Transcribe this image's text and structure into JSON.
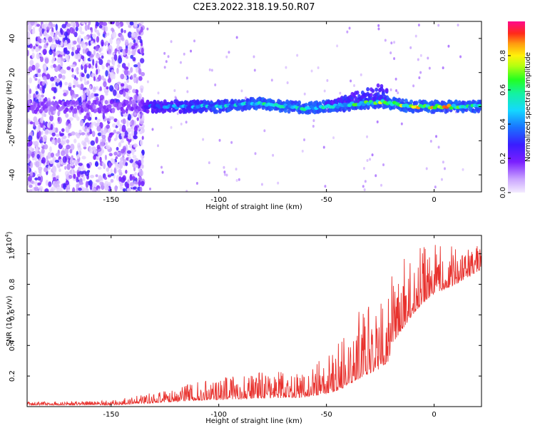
{
  "title": "C2E3.2022.318.19.50.R07",
  "colors": {
    "snr_line": "#e8322e",
    "frame": "#000000",
    "background": "#ffffff"
  },
  "chart_data": [
    {
      "type": "heatmap",
      "xlabel": "Height of straight line (km)",
      "ylabel": "Frequency (Hz)",
      "xlim": [
        -189,
        22
      ],
      "ylim": [
        -50,
        50
      ],
      "x_ticks": [
        -150,
        -100,
        -50,
        0
      ],
      "x_tick_labels": [
        "-150",
        "-100",
        "-50",
        "0"
      ],
      "y_ticks": [
        -40,
        -20,
        0,
        20,
        40
      ],
      "y_tick_labels": [
        "-40",
        "-20",
        "0",
        "20",
        "40"
      ],
      "colorbar": {
        "label": "Normalized spectral amplitude",
        "range": [
          0,
          1
        ],
        "ticks": [
          0,
          0.2,
          0.4,
          0.6,
          0.8
        ],
        "tick_labels": [
          "0.0",
          "0.2",
          "0.4",
          "0.6",
          "0.8"
        ],
        "colormap": "rainbow (magenta-blue-cyan-green-yellow-red-magenta)"
      },
      "ridge": {
        "description": "main spectral ridge near 0 Hz",
        "points": [
          {
            "x": -135,
            "freq": 0,
            "amp": 0.35
          },
          {
            "x": -120,
            "freq": 0,
            "amp": 0.45
          },
          {
            "x": -100,
            "freq": 0,
            "amp": 0.55
          },
          {
            "x": -80,
            "freq": 2,
            "amp": 0.6
          },
          {
            "x": -60,
            "freq": -1,
            "amp": 0.6
          },
          {
            "x": -40,
            "freq": 1,
            "amp": 0.6
          },
          {
            "x": -25,
            "freq": 3,
            "amp": 0.85
          },
          {
            "x": -10,
            "freq": 0,
            "amp": 0.85
          },
          {
            "x": 5,
            "freq": 0,
            "amp": 0.9
          },
          {
            "x": 20,
            "freq": 0,
            "amp": 0.6
          }
        ]
      }
    },
    {
      "type": "line",
      "xlabel": "Height of straight line (km)",
      "ylabel": "SNR (10 * v/v)",
      "scale_note": "(x10",
      "scale_exp": "4",
      "scale_close": ")",
      "xlim": [
        -189,
        22
      ],
      "ylim": [
        0,
        1.12
      ],
      "x_ticks": [
        -150,
        -100,
        -50,
        0
      ],
      "x_tick_labels": [
        "-150",
        "-100",
        "-50",
        "0"
      ],
      "y_ticks": [
        0.2,
        0.4,
        0.6,
        0.8,
        1.0
      ],
      "y_tick_labels": [
        "0.2",
        "0.4",
        "0.6",
        "0.8",
        "1.0"
      ],
      "envelope": {
        "x": [
          -189,
          -150,
          -135,
          -110,
          -90,
          -60,
          -45,
          -35,
          -25,
          -21,
          -20,
          -15,
          -10,
          -5,
          0,
          10,
          22
        ],
        "base": [
          0.01,
          0.01,
          0.02,
          0.04,
          0.05,
          0.06,
          0.1,
          0.18,
          0.25,
          0.3,
          0.4,
          0.5,
          0.6,
          0.68,
          0.74,
          0.8,
          0.9
        ],
        "peak": [
          0.03,
          0.04,
          0.08,
          0.16,
          0.22,
          0.24,
          0.4,
          0.62,
          0.7,
          0.72,
          0.85,
          1.0,
          1.05,
          1.05,
          1.07,
          1.05,
          1.07
        ]
      }
    }
  ]
}
